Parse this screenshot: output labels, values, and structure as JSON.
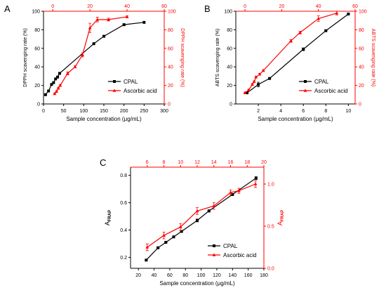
{
  "chart_data": [
    {
      "panel_label": "A",
      "type": "line",
      "xlabel": "Sample concentration (μg/mL)",
      "ylabel": "DPPH scavenging rate (%)",
      "ylabel_right": "DPPH scavenging rate (%)",
      "x_bottom": {
        "lim": [
          0,
          300
        ],
        "ticks": [
          0,
          50,
          100,
          150,
          200,
          250,
          300
        ]
      },
      "y_left": {
        "lim": [
          0,
          100
        ],
        "ticks": [
          0,
          20,
          40,
          60,
          80,
          100
        ]
      },
      "x_top": {
        "lim": [
          -5,
          60
        ],
        "ticks": [
          0,
          20,
          40,
          60
        ]
      },
      "y_right": {
        "lim": [
          0,
          100
        ],
        "ticks": [
          0,
          20,
          40,
          60,
          80,
          100
        ]
      },
      "legend": "bottom-right",
      "series": [
        {
          "name": "CPAL",
          "color": "#000000",
          "marker": "square",
          "axes": "bottom-left",
          "x": [
            5,
            12.5,
            20,
            25,
            30,
            35,
            40,
            125,
            150,
            200,
            250
          ],
          "y": [
            10,
            14,
            21,
            23,
            27,
            29,
            33,
            65,
            73,
            85.5,
            88
          ],
          "err": [
            0.5,
            0.5,
            0.5,
            0.5,
            0.5,
            0.5,
            0.5,
            0.8,
            0.6,
            0.6,
            0.5
          ]
        },
        {
          "name": "Ascorbic acid",
          "color": "#ff0000",
          "marker": "triangle",
          "axes": "top-right",
          "x": [
            1,
            2,
            3,
            4,
            8,
            12,
            16,
            20,
            24,
            30,
            40
          ],
          "y": [
            11,
            13.5,
            17,
            20,
            33,
            40,
            53,
            82,
            91,
            91,
            94
          ],
          "err": [
            0.8,
            0.8,
            1,
            1,
            1.5,
            1.2,
            2.2,
            5,
            2.5,
            1.5,
            1
          ]
        }
      ]
    },
    {
      "panel_label": "B",
      "type": "line",
      "xlabel": "Sample concentration (μg/mL)",
      "ylabel": "ABTS scavenging rate (%)",
      "ylabel_right": "ABTS scavenging rate (%)",
      "x_bottom": {
        "lim": [
          0,
          10.6
        ],
        "ticks": [
          2,
          4,
          6,
          8,
          10
        ]
      },
      "y_left": {
        "lim": [
          0,
          100
        ],
        "ticks": [
          0,
          20,
          40,
          60,
          80,
          100
        ]
      },
      "x_top": {
        "lim": [
          -5,
          60
        ],
        "ticks": [
          0,
          20,
          40,
          60
        ]
      },
      "y_right": {
        "lim": [
          0,
          100
        ],
        "ticks": [
          0,
          20,
          40,
          60,
          80,
          100
        ]
      },
      "legend": "bottom-right",
      "series": [
        {
          "name": "CPAL",
          "color": "#000000",
          "marker": "square",
          "axes": "bottom-left",
          "x": [
            1,
            2,
            3,
            6,
            8,
            10
          ],
          "y": [
            12,
            21,
            27.5,
            59,
            79,
            97
          ],
          "err": [
            0.8,
            2.5,
            0.8,
            1.5,
            0.8,
            0.8
          ]
        },
        {
          "name": "Ascorbic acid",
          "color": "#ff0000",
          "marker": "triangle",
          "axes": "top-right",
          "x": [
            0,
            2,
            4,
            5,
            6,
            8,
            10,
            25,
            30,
            40,
            50
          ],
          "y": [
            12,
            15,
            21,
            24,
            29,
            32,
            36,
            68,
            77,
            92,
            98
          ],
          "err": [
            0.8,
            0.8,
            1,
            1,
            1,
            1,
            1,
            1.5,
            1.5,
            3,
            2
          ]
        }
      ]
    },
    {
      "panel_label": "C",
      "type": "line",
      "xlabel": "Sample concentration (μg/mL)",
      "ylabel": "AFRAP",
      "ylabel_right": "AFRAP",
      "x_bottom": {
        "lim": [
          10,
          180
        ],
        "ticks": [
          20,
          40,
          60,
          80,
          100,
          120,
          140,
          160,
          180
        ]
      },
      "y_left": {
        "lim": [
          0.12,
          0.86
        ],
        "ticks": [
          0.2,
          0.4,
          0.6,
          0.8
        ]
      },
      "x_top": {
        "lim": [
          4,
          20
        ],
        "ticks": [
          6,
          8,
          10,
          12,
          14,
          16,
          18,
          20
        ]
      },
      "y_right": {
        "lim": [
          0,
          1.2
        ],
        "ticks": [
          0.0,
          0.5,
          1.0
        ]
      },
      "legend": "bottom-right",
      "series": [
        {
          "name": "CPAL",
          "color": "#000000",
          "marker": "square",
          "axes": "bottom-left",
          "x": [
            30,
            45,
            55,
            65,
            75,
            95,
            110,
            140,
            170
          ],
          "y": [
            0.18,
            0.27,
            0.31,
            0.35,
            0.39,
            0.47,
            0.54,
            0.66,
            0.78
          ],
          "err": [
            0.005,
            0.005,
            0.005,
            0.005,
            0.006,
            0.01,
            0.008,
            0.008,
            0.01
          ]
        },
        {
          "name": "Ascorbic acid",
          "color": "#ff0000",
          "marker": "triangle",
          "axes": "top-right",
          "x": [
            6,
            8,
            10,
            12,
            14,
            16,
            17,
            19
          ],
          "y": [
            0.25,
            0.39,
            0.49,
            0.68,
            0.74,
            0.9,
            0.92,
            1.0
          ],
          "err": [
            0.04,
            0.04,
            0.04,
            0.04,
            0.04,
            0.03,
            0.03,
            0.04
          ]
        }
      ]
    }
  ]
}
